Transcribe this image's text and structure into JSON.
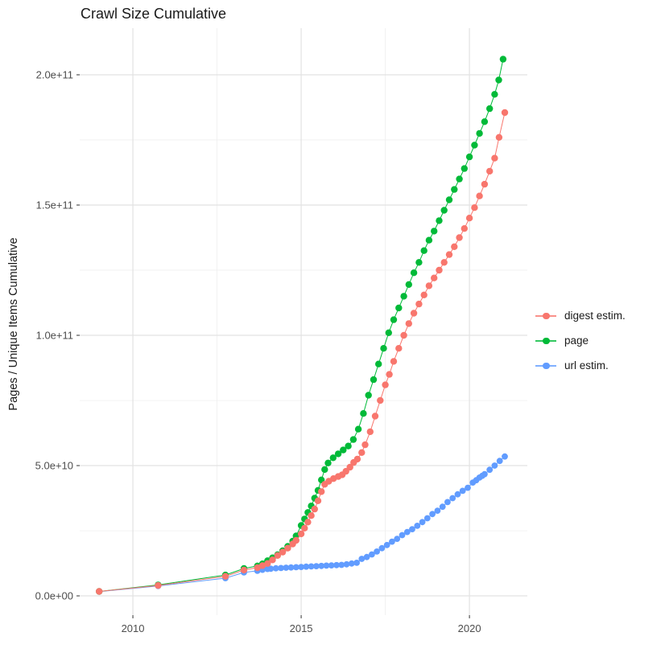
{
  "title": "Crawl Size Cumulative",
  "axes": {
    "x": {
      "domain": [
        2008.42,
        2021.72
      ],
      "major_ticks": [
        2010,
        2015,
        2020
      ],
      "tick_labels": [
        "2010",
        "2015",
        "2020"
      ],
      "minor_ticks": [
        2012.5,
        2017.5
      ]
    },
    "y": {
      "title": "Pages / Unique Items Cumulative",
      "unit_note": "values stored in billions (1e9)",
      "domain_billions": [
        -7.4,
        217.9
      ],
      "major_ticks_billions": [
        0,
        50,
        100,
        150,
        200
      ],
      "tick_labels": [
        "0.0e+00",
        "5.0e+10",
        "1.0e+11",
        "1.5e+11",
        "2.0e+11"
      ],
      "minor_ticks_billions": [
        25,
        75,
        125,
        175
      ]
    }
  },
  "legend": {
    "position": "right",
    "items": [
      {
        "label": "digest estim.",
        "color": "#F8766D"
      },
      {
        "label": "page",
        "color": "#00BA38"
      },
      {
        "label": "url estim.",
        "color": "#619CFF"
      }
    ]
  },
  "chart_data": {
    "type": "scatter",
    "title": "Crawl Size Cumulative",
    "xlabel": "",
    "ylabel": "Pages / Unique Items Cumulative",
    "grid": true,
    "legend_position": "right",
    "values_unit": 1000000000,
    "xlim": [
      2008.42,
      2021.72
    ],
    "ylim_billions": [
      -7.4,
      217.9
    ],
    "series": [
      {
        "name": "digest estim.",
        "color": "#F8766D",
        "marker_radius": 4.2,
        "points_year_billions": [
          [
            2009.0,
            1.7
          ],
          [
            2010.75,
            4.0
          ],
          [
            2012.75,
            7.5
          ],
          [
            2013.3,
            9.9
          ],
          [
            2013.7,
            10.8
          ],
          [
            2013.85,
            11.6
          ],
          [
            2014.0,
            12.4
          ],
          [
            2014.15,
            13.8
          ],
          [
            2014.3,
            15.5
          ],
          [
            2014.45,
            16.8
          ],
          [
            2014.6,
            18.3
          ],
          [
            2014.75,
            19.9
          ],
          [
            2014.85,
            21.3
          ],
          [
            2015.0,
            23.8
          ],
          [
            2015.1,
            26.0
          ],
          [
            2015.2,
            28.3
          ],
          [
            2015.3,
            30.8
          ],
          [
            2015.4,
            33.3
          ],
          [
            2015.5,
            36.5
          ],
          [
            2015.6,
            40.0
          ],
          [
            2015.7,
            42.8
          ],
          [
            2015.82,
            44.0
          ],
          [
            2015.96,
            45.0
          ],
          [
            2016.1,
            45.8
          ],
          [
            2016.22,
            46.5
          ],
          [
            2016.33,
            47.8
          ],
          [
            2016.45,
            49.4
          ],
          [
            2016.56,
            51.2
          ],
          [
            2016.67,
            52.5
          ],
          [
            2016.8,
            55.0
          ],
          [
            2016.9,
            58.0
          ],
          [
            2017.05,
            63
          ],
          [
            2017.2,
            69
          ],
          [
            2017.35,
            75
          ],
          [
            2017.5,
            81
          ],
          [
            2017.62,
            85
          ],
          [
            2017.75,
            90
          ],
          [
            2017.9,
            95
          ],
          [
            2018.05,
            100
          ],
          [
            2018.2,
            104.5
          ],
          [
            2018.35,
            108.5
          ],
          [
            2018.5,
            112
          ],
          [
            2018.65,
            115.5
          ],
          [
            2018.8,
            119
          ],
          [
            2018.95,
            122
          ],
          [
            2019.1,
            125
          ],
          [
            2019.25,
            128
          ],
          [
            2019.4,
            131
          ],
          [
            2019.55,
            134
          ],
          [
            2019.7,
            137.5
          ],
          [
            2019.85,
            141
          ],
          [
            2020.0,
            145
          ],
          [
            2020.15,
            149
          ],
          [
            2020.3,
            153.5
          ],
          [
            2020.45,
            158
          ],
          [
            2020.6,
            163
          ],
          [
            2020.75,
            168
          ],
          [
            2020.88,
            176
          ],
          [
            2021.05,
            185.5
          ]
        ]
      },
      {
        "name": "page",
        "color": "#00BA38",
        "marker_radius": 4.2,
        "points_year_billions": [
          [
            2009.0,
            1.7
          ],
          [
            2010.75,
            4.2
          ],
          [
            2012.75,
            8.0
          ],
          [
            2013.3,
            10.5
          ],
          [
            2013.7,
            11.5
          ],
          [
            2013.85,
            12.3
          ],
          [
            2014.0,
            13.5
          ],
          [
            2014.15,
            14.6
          ],
          [
            2014.3,
            15.8
          ],
          [
            2014.45,
            17.3
          ],
          [
            2014.6,
            19.0
          ],
          [
            2014.75,
            21.0
          ],
          [
            2014.85,
            23.0
          ],
          [
            2015.0,
            27.0
          ],
          [
            2015.1,
            29.5
          ],
          [
            2015.2,
            32.0
          ],
          [
            2015.3,
            34.5
          ],
          [
            2015.4,
            37.5
          ],
          [
            2015.5,
            40.5
          ],
          [
            2015.6,
            44.5
          ],
          [
            2015.7,
            48.5
          ],
          [
            2015.8,
            51.0
          ],
          [
            2015.95,
            53.0
          ],
          [
            2016.1,
            54.5
          ],
          [
            2016.25,
            56.0
          ],
          [
            2016.4,
            57.5
          ],
          [
            2016.55,
            60.0
          ],
          [
            2016.7,
            64.0
          ],
          [
            2016.85,
            70.0
          ],
          [
            2017.0,
            77.0
          ],
          [
            2017.15,
            83.0
          ],
          [
            2017.3,
            89.0
          ],
          [
            2017.45,
            95.0
          ],
          [
            2017.6,
            101
          ],
          [
            2017.75,
            106
          ],
          [
            2017.9,
            110.5
          ],
          [
            2018.05,
            115
          ],
          [
            2018.2,
            119.5
          ],
          [
            2018.35,
            124
          ],
          [
            2018.5,
            128
          ],
          [
            2018.65,
            132.5
          ],
          [
            2018.8,
            136.5
          ],
          [
            2018.95,
            140
          ],
          [
            2019.1,
            144
          ],
          [
            2019.25,
            148
          ],
          [
            2019.4,
            152
          ],
          [
            2019.55,
            156
          ],
          [
            2019.7,
            160
          ],
          [
            2019.85,
            164
          ],
          [
            2020.0,
            168.5
          ],
          [
            2020.15,
            173
          ],
          [
            2020.3,
            177.5
          ],
          [
            2020.45,
            182
          ],
          [
            2020.6,
            187
          ],
          [
            2020.75,
            192.5
          ],
          [
            2020.87,
            198
          ],
          [
            2021.0,
            206
          ]
        ]
      },
      {
        "name": "url estim.",
        "color": "#619CFF",
        "marker_radius": 3.9,
        "points_year_billions": [
          [
            2009.0,
            1.6
          ],
          [
            2010.75,
            3.8
          ],
          [
            2012.75,
            6.8
          ],
          [
            2013.3,
            9.0
          ],
          [
            2013.7,
            9.6
          ],
          [
            2013.85,
            10.0
          ],
          [
            2014.0,
            10.3
          ],
          [
            2014.1,
            10.4
          ],
          [
            2014.25,
            10.6
          ],
          [
            2014.4,
            10.7
          ],
          [
            2014.55,
            10.8
          ],
          [
            2014.7,
            10.9
          ],
          [
            2014.85,
            11.0
          ],
          [
            2015.0,
            11.1
          ],
          [
            2015.15,
            11.2
          ],
          [
            2015.3,
            11.3
          ],
          [
            2015.45,
            11.4
          ],
          [
            2015.6,
            11.5
          ],
          [
            2015.75,
            11.6
          ],
          [
            2015.9,
            11.7
          ],
          [
            2016.05,
            11.8
          ],
          [
            2016.2,
            11.9
          ],
          [
            2016.35,
            12.1
          ],
          [
            2016.5,
            12.4
          ],
          [
            2016.65,
            12.7
          ],
          [
            2016.8,
            14.2
          ],
          [
            2016.95,
            14.9
          ],
          [
            2017.1,
            15.9
          ],
          [
            2017.25,
            17.0
          ],
          [
            2017.4,
            18.3
          ],
          [
            2017.55,
            19.5
          ],
          [
            2017.7,
            20.8
          ],
          [
            2017.85,
            21.9
          ],
          [
            2018.0,
            23.3
          ],
          [
            2018.15,
            24.5
          ],
          [
            2018.3,
            25.6
          ],
          [
            2018.45,
            26.9
          ],
          [
            2018.6,
            28.3
          ],
          [
            2018.75,
            29.8
          ],
          [
            2018.9,
            31.4
          ],
          [
            2019.05,
            32.7
          ],
          [
            2019.2,
            34.2
          ],
          [
            2019.35,
            36.0
          ],
          [
            2019.5,
            37.5
          ],
          [
            2019.65,
            39.0
          ],
          [
            2019.8,
            40.3
          ],
          [
            2019.95,
            41.5
          ],
          [
            2020.1,
            43.5
          ],
          [
            2020.2,
            44.4
          ],
          [
            2020.3,
            45.4
          ],
          [
            2020.38,
            46.1
          ],
          [
            2020.45,
            46.7
          ],
          [
            2020.6,
            48.4
          ],
          [
            2020.75,
            50.0
          ],
          [
            2020.9,
            51.8
          ],
          [
            2021.05,
            53.5
          ]
        ]
      }
    ]
  },
  "style": {
    "grid_major_color": "#E2E2E2",
    "grid_minor_color": "#F0F0F0",
    "tick_mark_color": "#333333",
    "tick_label_color": "#4d4d4d"
  }
}
